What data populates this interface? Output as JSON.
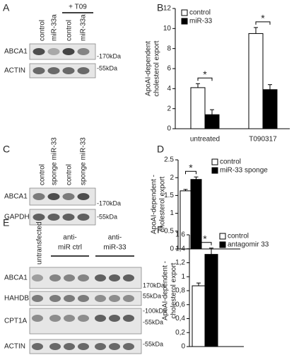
{
  "blots": [
    {
      "letter": "A",
      "lanes": [
        "control",
        "miR-33a",
        "control",
        "miR-33a"
      ],
      "groups": [
        {
          "label": [
            "+ T09"
          ]
        }
      ],
      "rows": [
        {
          "name": "ABCA1",
          "markers": [
            "-170kDa"
          ]
        },
        {
          "name": "ACTIN",
          "markers": [
            "-55kDa"
          ]
        }
      ]
    },
    {
      "letter": "C",
      "lanes": [
        "control",
        "sponge miR-33",
        "control",
        "sponge miR-33"
      ],
      "groups": [],
      "rows": [
        {
          "name": "ABCA1",
          "markers": [
            "-170kDa"
          ]
        },
        {
          "name": "GAPDH",
          "markers": [
            "-55kDa"
          ]
        }
      ]
    },
    {
      "letter": "E",
      "lanes": [
        "untransfected"
      ],
      "groups": [
        {
          "label": [
            "anti-",
            "miR ctrl"
          ]
        },
        {
          "label": [
            "anti-",
            "miR-33"
          ]
        }
      ],
      "rows": [
        {
          "name": "ABCA1",
          "markers": [
            "170kDa"
          ]
        },
        {
          "name": "HAHDB",
          "markers": [
            "55kDa"
          ]
        },
        {
          "name": "CPT1A",
          "markers": [
            "-100kDa",
            "-55kDa"
          ]
        },
        {
          "name": "ACTIN",
          "markers": [
            "-55kDa"
          ]
        }
      ]
    }
  ],
  "chart_data": [
    {
      "type": "bar",
      "panel": "B",
      "ylabel": [
        "ApoAI-dependent",
        "cholesterol export"
      ],
      "categories": [
        "untreated",
        "T090317"
      ],
      "series": [
        {
          "name": "control",
          "color": "#ffffff",
          "values": [
            4.1,
            9.5
          ],
          "errors": [
            0.4,
            0.6
          ]
        },
        {
          "name": "miR-33",
          "color": "#000000",
          "values": [
            1.4,
            3.9
          ],
          "errors": [
            0.5,
            0.5
          ]
        }
      ],
      "significance": [
        "*",
        "*"
      ],
      "ylim": [
        0,
        12
      ],
      "yticks": [
        0,
        2,
        4,
        6,
        8,
        10,
        12
      ],
      "legend": "upper left"
    },
    {
      "type": "bar",
      "panel": "D",
      "ylabel": [
        "ApoAI-dependent -",
        "cholesterol export"
      ],
      "series": [
        {
          "name": "control",
          "color": "#ffffff",
          "values": [
            1.63
          ],
          "errors": [
            0.04
          ]
        },
        {
          "name": "miR-33 sponge",
          "color": "#000000",
          "values": [
            1.95
          ],
          "errors": [
            0.07
          ]
        }
      ],
      "significance": [
        "*"
      ],
      "ylim": [
        0,
        2.5
      ],
      "yticks": [
        0,
        0.5,
        1,
        1.5,
        2,
        2.5
      ],
      "legend": "upper right"
    },
    {
      "type": "bar",
      "panel": "F",
      "ylabel": [
        "ApoAI-dependent -",
        "cholesterol export"
      ],
      "series": [
        {
          "name": "control",
          "color": "#ffffff",
          "values": [
            0.87
          ],
          "errors": [
            0.04
          ]
        },
        {
          "name": "antagomir 33",
          "color": "#000000",
          "values": [
            1.32
          ],
          "errors": [
            0.09
          ]
        }
      ],
      "significance": [
        "*"
      ],
      "ylim": [
        0,
        1.6
      ],
      "yticks": [
        0,
        {
          "value": 0.2,
          "label": "0,2"
        },
        {
          "value": 0.4,
          "label": "0,4"
        },
        {
          "value": 0.6,
          "label": "0,6"
        },
        {
          "value": 0.8,
          "label": "0,8"
        },
        1,
        {
          "value": 1.2,
          "label": "1,2"
        },
        {
          "value": 1.4,
          "label": "1,4"
        },
        {
          "value": 1.6,
          "label": "1,6"
        }
      ],
      "legend": "upper right"
    }
  ]
}
